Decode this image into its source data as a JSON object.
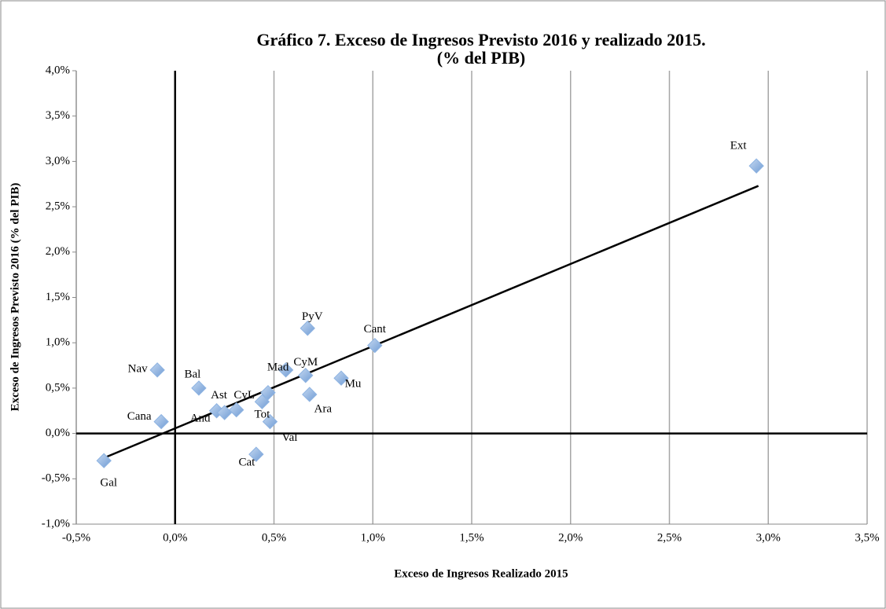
{
  "chart_data": {
    "type": "scatter",
    "title": [
      "Gráfico 7. Exceso de Ingresos Previsto 2016 y realizado  2015.",
      "(% del PIB)"
    ],
    "x_label": "Exceso de Ingresos Realizado 2015",
    "y_label": "Exceso de Ingresos Previsto 2016 (% del PIB)",
    "point_labels": [
      "Ext",
      "PyV",
      "Cant",
      "Mu",
      "CyM",
      "Mad",
      "Ara",
      "Val",
      "Tot",
      "Ast",
      "CyL",
      "And",
      null,
      "Bal",
      "Nav",
      "Cana",
      "Cat",
      "Gal"
    ],
    "x": [
      2.94,
      0.67,
      1.01,
      0.84,
      0.66,
      0.56,
      0.68,
      0.48,
      0.44,
      0.21,
      0.31,
      0.25,
      0.47,
      0.12,
      -0.09,
      -0.07,
      0.41,
      -0.36
    ],
    "values": [
      2.95,
      1.16,
      0.97,
      0.61,
      0.64,
      0.7,
      0.43,
      0.13,
      0.35,
      0.25,
      0.26,
      0.23,
      0.45,
      0.5,
      0.7,
      0.13,
      -0.23,
      -0.3
    ],
    "color": "#8db3e2",
    "trendline": {
      "x": [
        -0.36,
        2.95
      ],
      "y": [
        -0.27,
        2.73
      ],
      "color": "#000000"
    },
    "xlim": [
      -0.5,
      3.5
    ],
    "ylim": [
      -1,
      4
    ],
    "xticks": [
      {
        "value": -0.5,
        "label": "-0,5%"
      },
      {
        "value": 0,
        "label": "0,0%"
      },
      {
        "value": 0.5,
        "label": "0,5%"
      },
      {
        "value": 1,
        "label": "1,0%"
      },
      {
        "value": 1.5,
        "label": "1,5%"
      },
      {
        "value": 2,
        "label": "2,0%"
      },
      {
        "value": 2.5,
        "label": "2,5%"
      },
      {
        "value": 3,
        "label": "3,0%"
      },
      {
        "value": 3.5,
        "label": "3,5%"
      }
    ],
    "yticks": [
      {
        "value": -1,
        "label": "-1,0%"
      },
      {
        "value": -0.5,
        "label": "-0,5%"
      },
      {
        "value": 0,
        "label": "0,0%"
      },
      {
        "value": 0.5,
        "label": "0,5%"
      },
      {
        "value": 1,
        "label": "1,0%"
      },
      {
        "value": 1.5,
        "label": "1,5%"
      },
      {
        "value": 2,
        "label": "2,0%"
      },
      {
        "value": 2.5,
        "label": "2,5%"
      },
      {
        "value": 3,
        "label": "3,0%"
      },
      {
        "value": 3.5,
        "label": "3,5%"
      },
      {
        "value": 4,
        "label": "4,0%"
      }
    ],
    "grid": "x"
  }
}
